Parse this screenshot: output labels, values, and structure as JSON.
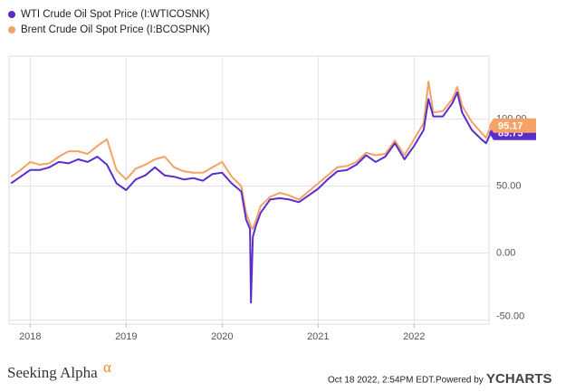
{
  "chart_data": {
    "type": "line",
    "x": [
      2017.8,
      2017.9,
      2018.0,
      2018.1,
      2018.2,
      2018.3,
      2018.4,
      2018.5,
      2018.6,
      2018.7,
      2018.8,
      2018.9,
      2019.0,
      2019.1,
      2019.2,
      2019.3,
      2019.4,
      2019.5,
      2019.6,
      2019.7,
      2019.8,
      2019.9,
      2020.0,
      2020.1,
      2020.2,
      2020.25,
      2020.29,
      2020.3,
      2020.32,
      2020.35,
      2020.4,
      2020.5,
      2020.6,
      2020.7,
      2020.8,
      2020.9,
      2021.0,
      2021.1,
      2021.2,
      2021.3,
      2021.4,
      2021.5,
      2021.6,
      2021.7,
      2021.8,
      2021.9,
      2022.0,
      2022.1,
      2022.15,
      2022.2,
      2022.3,
      2022.4,
      2022.45,
      2022.5,
      2022.6,
      2022.7,
      2022.75,
      2022.8
    ],
    "series": [
      {
        "name": "WTI Crude Oil Spot Price (I:WTICOSNK)",
        "color": "#5b2ecc",
        "values": [
          52,
          57,
          62,
          62,
          64,
          68,
          67,
          70,
          68,
          72,
          66,
          52,
          47,
          55,
          58,
          64,
          58,
          57,
          55,
          56,
          54,
          59,
          60,
          52,
          46,
          25,
          18,
          -37,
          12,
          20,
          30,
          40,
          41,
          40,
          38,
          43,
          48,
          55,
          61,
          62,
          66,
          73,
          68,
          72,
          82,
          70,
          80,
          92,
          115,
          102,
          102,
          112,
          120,
          105,
          92,
          85,
          82,
          89.75
        ]
      },
      {
        "name": "Brent Crude Oil Spot Price (I:BCOSPNK)",
        "color": "#f4a268",
        "values": [
          57,
          62,
          68,
          66,
          67,
          72,
          76,
          76,
          74,
          80,
          85,
          62,
          55,
          63,
          66,
          70,
          72,
          64,
          61,
          60,
          60,
          64,
          68,
          57,
          50,
          30,
          22,
          20,
          18,
          24,
          35,
          42,
          45,
          43,
          40,
          46,
          52,
          58,
          64,
          65,
          68,
          75,
          73,
          74,
          84,
          73,
          85,
          97,
          128,
          105,
          106,
          115,
          124,
          110,
          98,
          90,
          86,
          95.17
        ]
      }
    ],
    "xlim": [
      2017.78,
      2022.78
    ],
    "xticks": [
      2018,
      2019,
      2020,
      2021,
      2022
    ],
    "ylim": [
      -53,
      147
    ],
    "yticks": [
      {
        "value": -50,
        "label": "-50.00"
      },
      {
        "value": 0,
        "label": "0.00"
      },
      {
        "value": 50,
        "label": "50.00"
      },
      {
        "value": 100,
        "label": "100.00"
      }
    ],
    "grid": true,
    "legend": "top-left"
  },
  "footer": {
    "brand": "Seeking Alpha",
    "brand_mark": "α",
    "timestamp": "Oct 18 2022, 2:54PM EDT.",
    "powered": "Powered by",
    "provider": "YCHARTS"
  }
}
